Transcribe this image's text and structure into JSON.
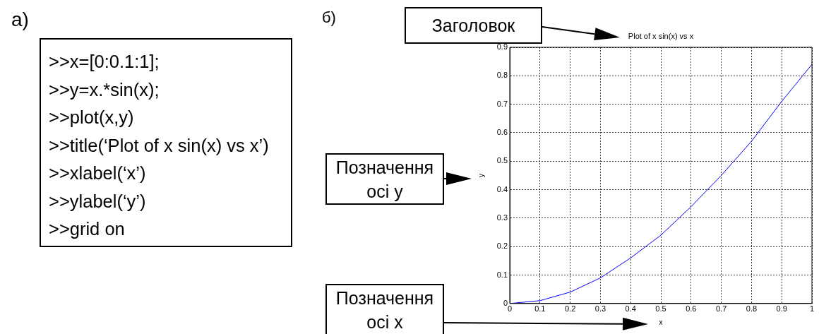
{
  "chart_data": [
    {
      "type": "other",
      "title": "а)",
      "annotations": [
        ">>x=[0:0.1:1];",
        ">>y=x.*sin(x);",
        ">>plot(x,y)",
        ">>title(‘Plot of x sin(x) vs x’)",
        ">>xlabel(‘x’)",
        ">>ylabel(‘y’)",
        ">>grid on"
      ]
    },
    {
      "type": "line",
      "title": "Plot of x sin(x) vs x",
      "xlabel": "x",
      "ylabel": "y",
      "x": [
        0,
        0.1,
        0.2,
        0.3,
        0.4,
        0.5,
        0.6,
        0.7,
        0.8,
        0.9,
        1
      ],
      "series": [
        {
          "color": "#0000ff",
          "values": [
            0,
            0.01,
            0.04,
            0.09,
            0.16,
            0.24,
            0.34,
            0.45,
            0.57,
            0.71,
            0.84
          ]
        }
      ],
      "xlim": [
        0,
        1
      ],
      "xticks": [
        0,
        0.1,
        0.2,
        0.3,
        0.4,
        0.5,
        0.6,
        0.7,
        0.8,
        0.9,
        1
      ],
      "ylim": [
        0,
        0.9
      ],
      "yticks": [
        0,
        0.1,
        0.2,
        0.3,
        0.4,
        0.5,
        0.6,
        0.7,
        0.8,
        0.9
      ],
      "grid": true,
      "legend": false,
      "marker": "none",
      "line_style": "solid",
      "annotations": [
        "б)",
        "Заголовок",
        "Позначення осі y",
        "Позначення осі x"
      ]
    }
  ]
}
